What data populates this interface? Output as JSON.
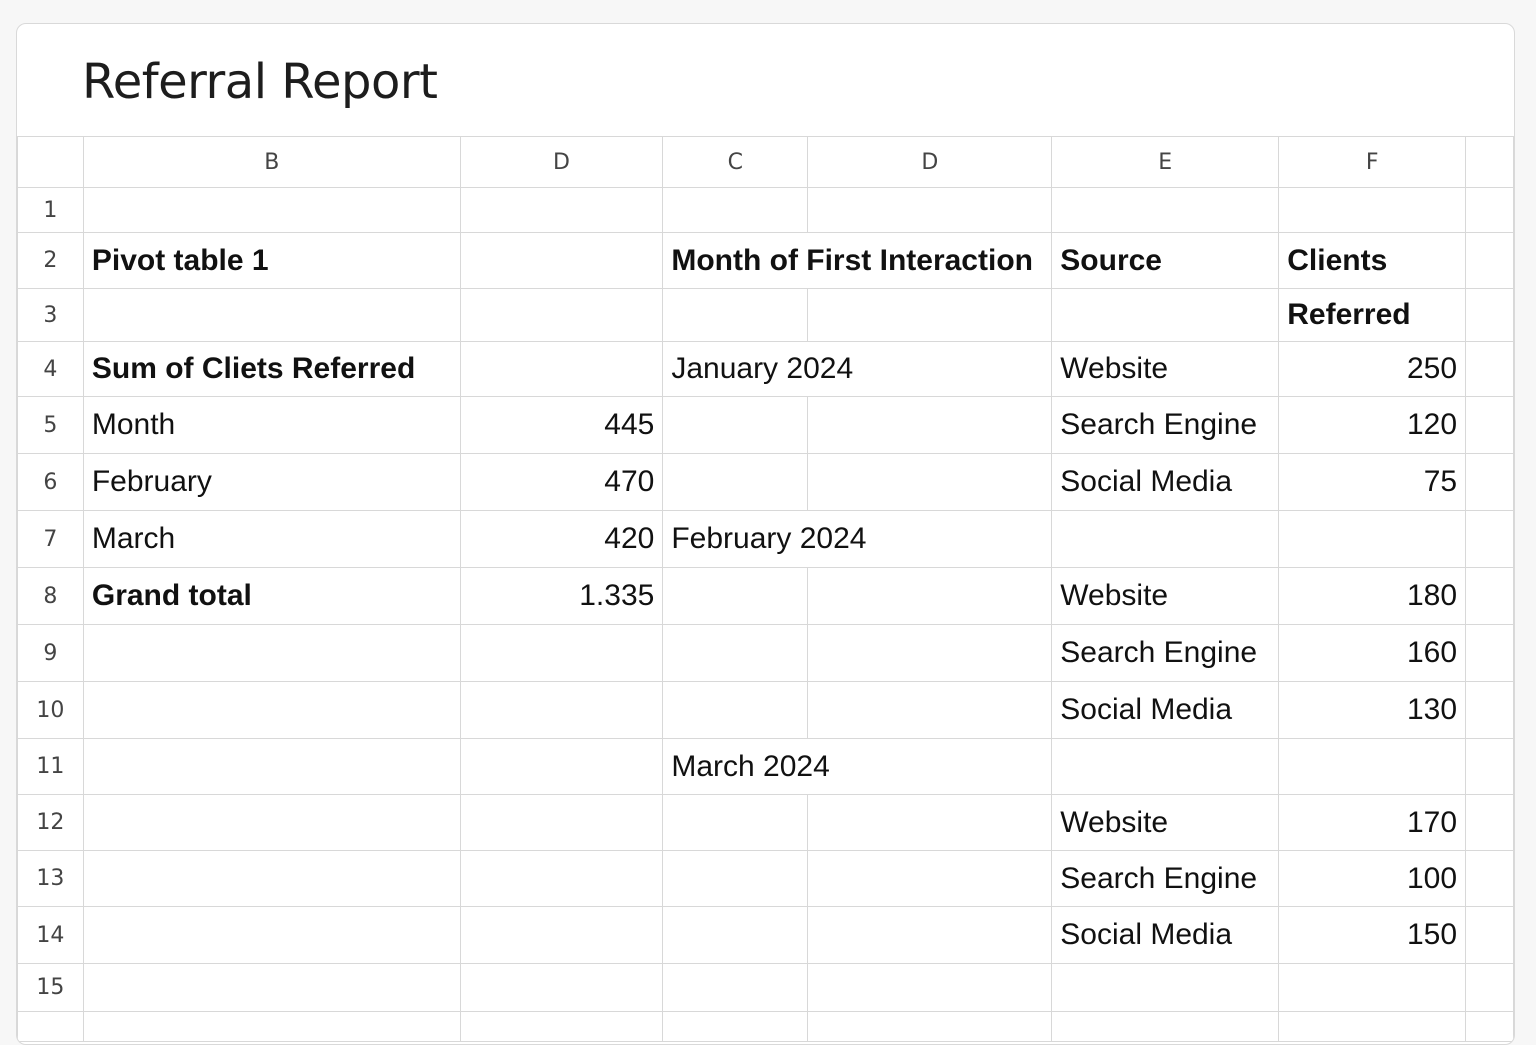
{
  "report": {
    "title": "Referral Report"
  },
  "columns": [
    "B",
    "D",
    "C",
    "D",
    "E",
    "F"
  ],
  "rows": [
    "1",
    "2",
    "3",
    "4",
    "5",
    "6",
    "7",
    "8",
    "9",
    "10",
    "11",
    "12",
    "13",
    "14",
    "15"
  ],
  "pivot": {
    "title": "Pivot table 1",
    "subtitle": "Sum of Cliets Referred",
    "rows": [
      {
        "label": "Month",
        "value": "445"
      },
      {
        "label": "February",
        "value": "470"
      },
      {
        "label": "March",
        "value": "420"
      }
    ],
    "total_label": "Grand total",
    "total_value": "1.335"
  },
  "detail": {
    "headers": {
      "month": "Month of First Interaction",
      "source": "Source",
      "clients_line1": "Clients",
      "clients_line2": "Referred"
    },
    "months": [
      "January 2024",
      "February 2024",
      "March 2024"
    ],
    "entries": [
      {
        "source": "Website",
        "value": "250"
      },
      {
        "source": "Search Engine",
        "value": "120"
      },
      {
        "source": "Social Media",
        "value": "75"
      },
      {
        "source": "Website",
        "value": "180"
      },
      {
        "source": "Search Engine",
        "value": "160"
      },
      {
        "source": "Social Media",
        "value": "130"
      },
      {
        "source": "Website",
        "value": "170"
      },
      {
        "source": "Search Engine",
        "value": "100"
      },
      {
        "source": "Social Media",
        "value": "150"
      }
    ]
  }
}
